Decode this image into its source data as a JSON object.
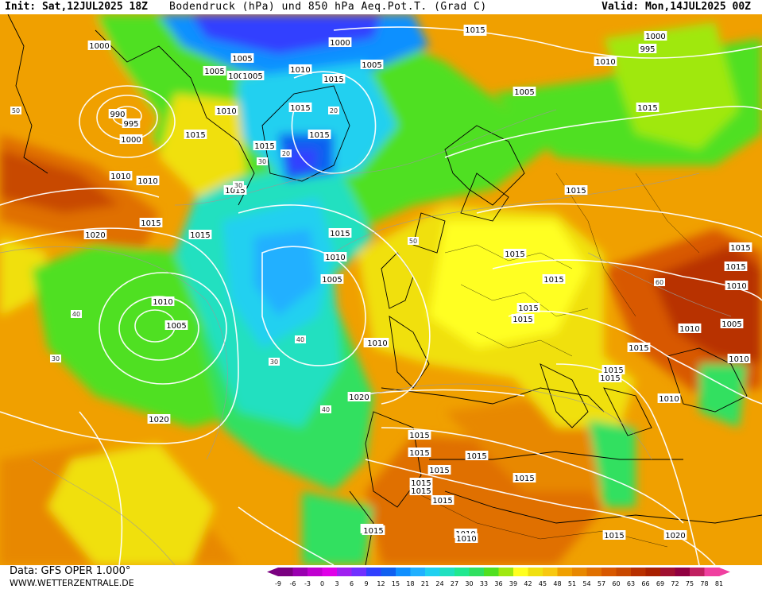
{
  "header": {
    "init": "Init: Sat,12JUL2025 18Z",
    "title": "Bodendruck (hPa) und 850 hPa Aeq.Pot.T. (Grad C)",
    "valid": "Valid: Mon,14JUL2025 00Z"
  },
  "footer": {
    "data": "Data: GFS OPER 1.000°",
    "site": "WWW.WETTERZENTRALE.DE"
  },
  "scale": {
    "ticks": [
      "-9",
      "-6",
      "-3",
      "0",
      "3",
      "6",
      "9",
      "12",
      "15",
      "18",
      "21",
      "24",
      "27",
      "30",
      "33",
      "36",
      "39",
      "42",
      "45",
      "48",
      "51",
      "54",
      "57",
      "60",
      "63",
      "66",
      "69",
      "72",
      "75",
      "78",
      "81"
    ],
    "colors": [
      "#7a0080",
      "#9a00b0",
      "#c000d0",
      "#e000e8",
      "#a020f0",
      "#7030ff",
      "#3040ff",
      "#1060f0",
      "#1090ff",
      "#20b0ff",
      "#20d0f0",
      "#20e0c0",
      "#20e890",
      "#30e060",
      "#50e020",
      "#a0e810",
      "#ffff20",
      "#f0e010",
      "#f8c810",
      "#f0a000",
      "#e88800",
      "#e07000",
      "#d85800",
      "#c84800",
      "#b83000",
      "#a82000",
      "#a01030",
      "#900040",
      "#c02060",
      "#f040a0"
    ]
  },
  "isobar_labels": [
    {
      "t": "1000"
    },
    {
      "t": "995"
    },
    {
      "t": "990"
    },
    {
      "t": "1000"
    },
    {
      "t": "1010"
    },
    {
      "t": "1010"
    },
    {
      "t": "1015"
    },
    {
      "t": "1020"
    },
    {
      "t": "1015"
    },
    {
      "t": "1010"
    },
    {
      "t": "1005"
    },
    {
      "t": "1020"
    },
    {
      "t": "1005"
    },
    {
      "t": "1005"
    },
    {
      "t": "1010"
    },
    {
      "t": "1000"
    },
    {
      "t": "1005"
    },
    {
      "t": "1010"
    },
    {
      "t": "1015"
    },
    {
      "t": "1015"
    },
    {
      "t": "1015"
    },
    {
      "t": "1015"
    },
    {
      "t": "1010"
    },
    {
      "t": "1005"
    },
    {
      "t": "1010"
    },
    {
      "t": "1020"
    },
    {
      "t": "1015"
    },
    {
      "t": "1015"
    },
    {
      "t": "1015"
    },
    {
      "t": "1015"
    },
    {
      "t": "1010"
    },
    {
      "t": "1015"
    },
    {
      "t": "1015"
    },
    {
      "t": "1015"
    },
    {
      "t": "1015"
    },
    {
      "t": "1015"
    },
    {
      "t": "1010"
    },
    {
      "t": "1015"
    },
    {
      "t": "1000"
    },
    {
      "t": "995"
    },
    {
      "t": "1010"
    },
    {
      "t": "1005"
    },
    {
      "t": "1015"
    },
    {
      "t": "1015"
    },
    {
      "t": "1015"
    },
    {
      "t": "1010"
    },
    {
      "t": "1005"
    },
    {
      "t": "1010"
    },
    {
      "t": "1010"
    },
    {
      "t": "1015"
    },
    {
      "t": "1015"
    },
    {
      "t": "1015"
    },
    {
      "t": "1015"
    },
    {
      "t": "1015"
    },
    {
      "t": "1015"
    },
    {
      "t": "1015"
    },
    {
      "t": "1010"
    },
    {
      "t": "1015"
    },
    {
      "t": "1015"
    },
    {
      "t": "1020"
    },
    {
      "t": "1010"
    },
    {
      "t": "1005"
    },
    {
      "t": "1015"
    },
    {
      "t": "1015"
    },
    {
      "t": "1005"
    },
    {
      "t": "1010"
    },
    {
      "t": "1015"
    },
    {
      "t": "1015"
    }
  ],
  "temp_labels": [
    "50",
    "40",
    "30",
    "20",
    "20",
    "30",
    "30",
    "30",
    "40",
    "50",
    "40",
    "60"
  ]
}
